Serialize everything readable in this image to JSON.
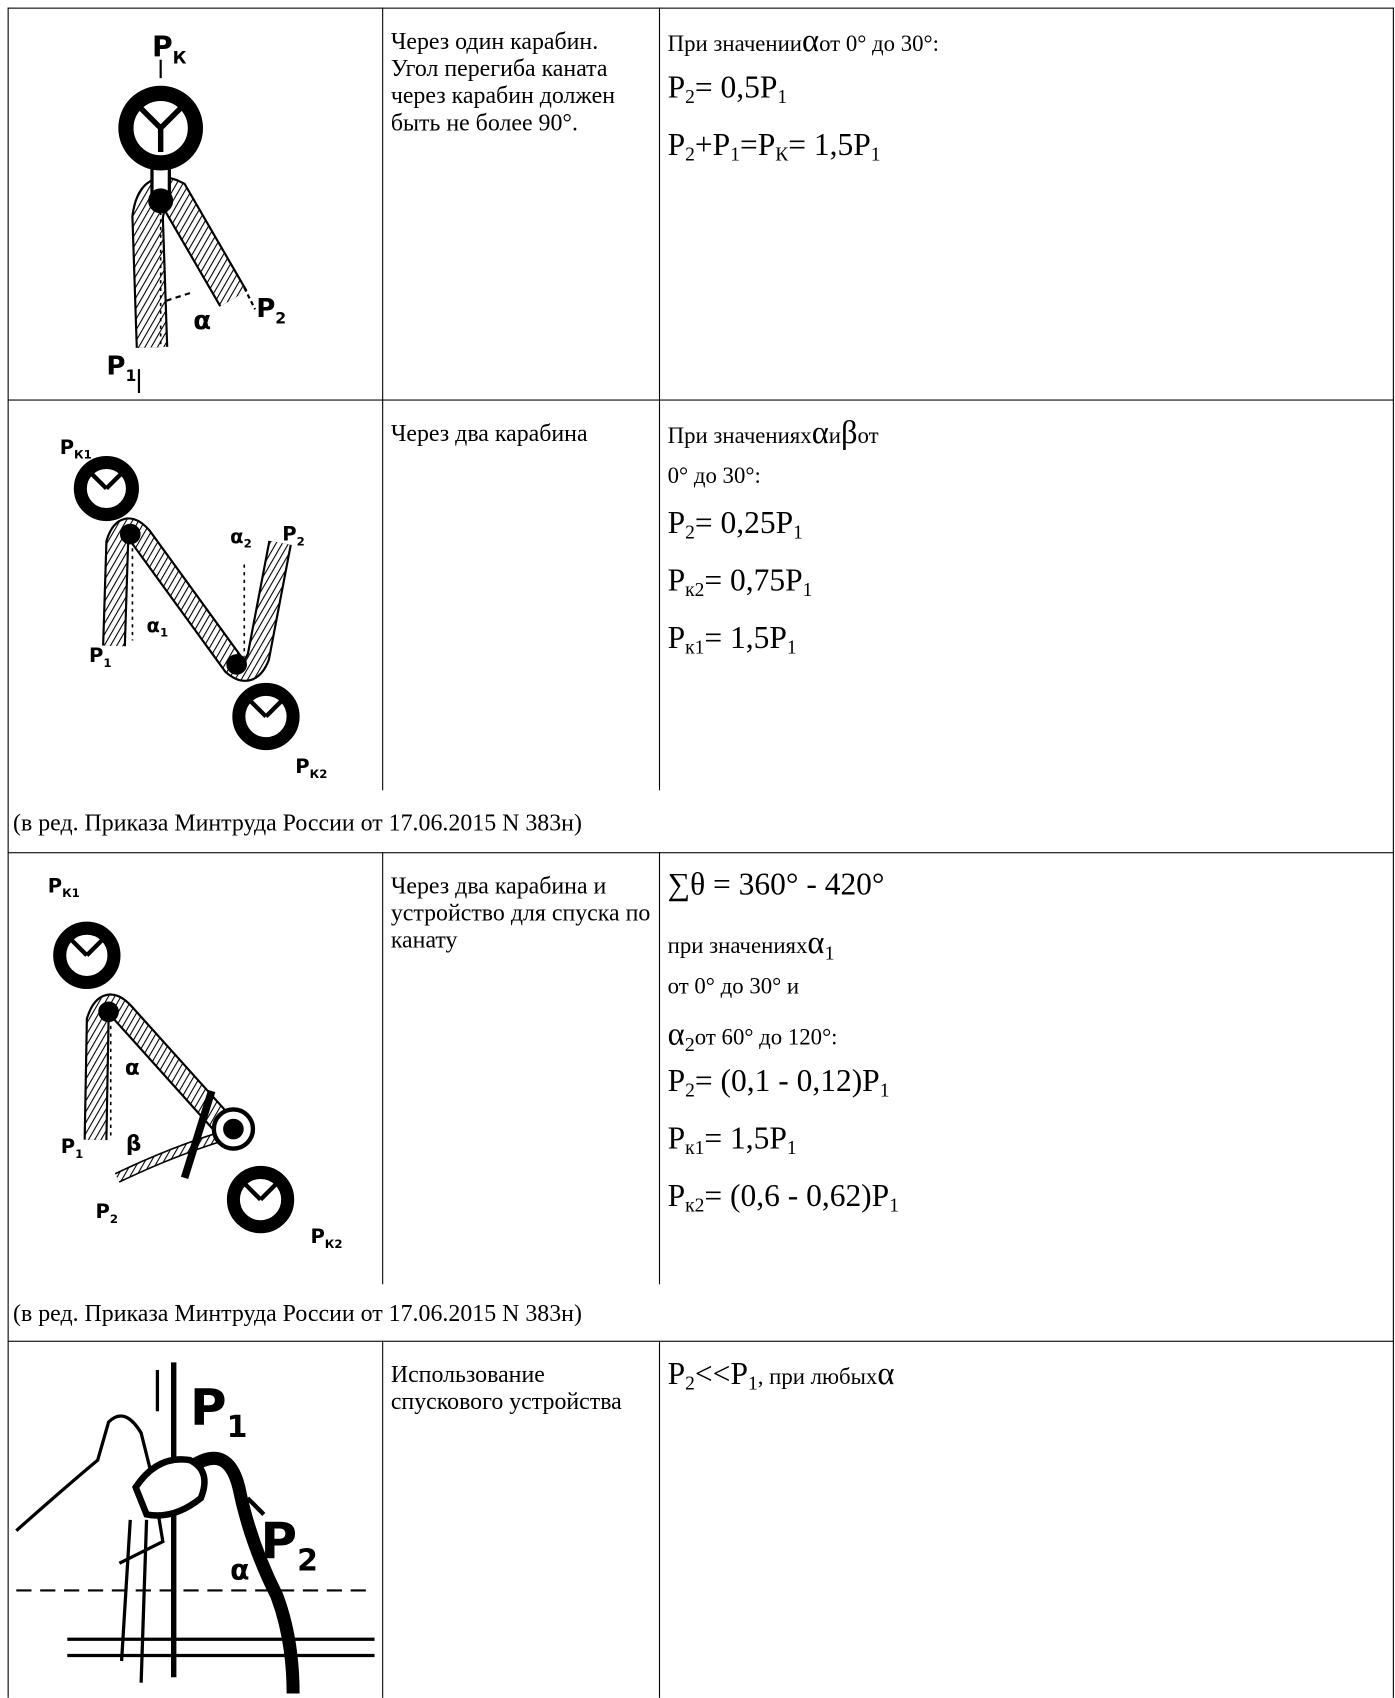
{
  "rows": [
    {
      "labels": [
        {
          "b": "P",
          "s": "К"
        },
        {
          "b": "P",
          "s": "1"
        },
        {
          "b": "α"
        },
        {
          "b": "P",
          "s": "2"
        }
      ],
      "text": "Через один карабин. Угол перегиба каната через карабин должен быть не более 90°.",
      "lines": [
        [
          "При значении ",
          {
            "sym": "α"
          },
          " от 0° до 30°:"
        ],
        [
          {
            "b": "P",
            "s": "2"
          },
          {
            "big": " = 0,5"
          },
          {
            "b": "P",
            "s": "1"
          }
        ],
        [
          {
            "b": "P",
            "s": "2"
          },
          {
            "big": " + "
          },
          {
            "b": "P",
            "s": "1"
          },
          {
            "big": " = "
          },
          {
            "b": "P",
            "s": "К"
          },
          {
            "big": " = 1,5"
          },
          {
            "b": "P",
            "s": "1"
          }
        ]
      ]
    },
    {
      "labels": [
        {
          "b": "P",
          "s": "К1"
        },
        {
          "b": "P",
          "s": "1"
        },
        {
          "b": "α",
          "s": "1"
        },
        {
          "b": "α",
          "s": "2"
        },
        {
          "b": "P",
          "s": "2"
        },
        {
          "b": "P",
          "s": "К2"
        }
      ],
      "text": "Через два карабина",
      "lines": [
        [
          "При значениях ",
          {
            "sym": "α"
          },
          " и ",
          {
            "sym": "β"
          },
          " от"
        ],
        [
          "0° до 30°:"
        ],
        [
          {
            "b": "P",
            "s": "2"
          },
          {
            "big": " = 0,25"
          },
          {
            "b": "P",
            "s": "1"
          }
        ],
        [
          {
            "b": "P",
            "s": "к2"
          },
          {
            "big": " = 0,75"
          },
          {
            "b": "P",
            "s": "1"
          }
        ],
        [
          {
            "b": "P",
            "s": "к1"
          },
          {
            "big": " = 1,5"
          },
          {
            "b": "P",
            "s": "1"
          }
        ]
      ]
    },
    {
      "labels": [
        {
          "b": "P",
          "s": "К1"
        },
        {
          "b": "P",
          "s": "1"
        },
        {
          "b": "α"
        },
        {
          "b": "β"
        },
        {
          "b": "P",
          "s": "2"
        },
        {
          "b": "P",
          "s": "К2"
        }
      ],
      "text": "Через два карабина и устройство для спуска по канату",
      "lines": [
        [
          {
            "big": "∑θ = 360° - 420°"
          }
        ],
        [
          "при значениях ",
          {
            "sym": "α",
            "s": "1"
          }
        ],
        [
          "от 0° до 30° и"
        ],
        [
          {
            "sym": "α",
            "s": "2"
          },
          " от 60° до 120°:"
        ],
        [
          {
            "b": "P",
            "s": "2"
          },
          {
            "big": " = (0,1 - 0,12) "
          },
          {
            "b": "P",
            "s": "1"
          }
        ],
        [
          {
            "b": "P",
            "s": "к1"
          },
          {
            "big": " = 1,5"
          },
          {
            "b": "P",
            "s": "1"
          }
        ],
        [
          {
            "b": "P",
            "s": "к2"
          },
          {
            "big": " = (0,6 - 0,62) "
          },
          {
            "b": "P",
            "s": "1"
          }
        ]
      ]
    },
    {
      "labels": [
        {
          "b": "P",
          "s": "1"
        },
        {
          "b": "P",
          "s": "2"
        },
        {
          "b": "α"
        }
      ],
      "text": "Использование спускового устройства",
      "lines": [
        [
          {
            "b": "P",
            "s": "2"
          },
          {
            "big": " << "
          },
          {
            "b": "P",
            "s": "1"
          },
          ", при любых ",
          {
            "sym": "α"
          }
        ]
      ]
    }
  ],
  "notes": [
    "(в ред. Приказа Минтруда России от 17.06.2015 N 383н)",
    "(в ред. Приказа Минтруда России от 17.06.2015 N 383н)"
  ]
}
